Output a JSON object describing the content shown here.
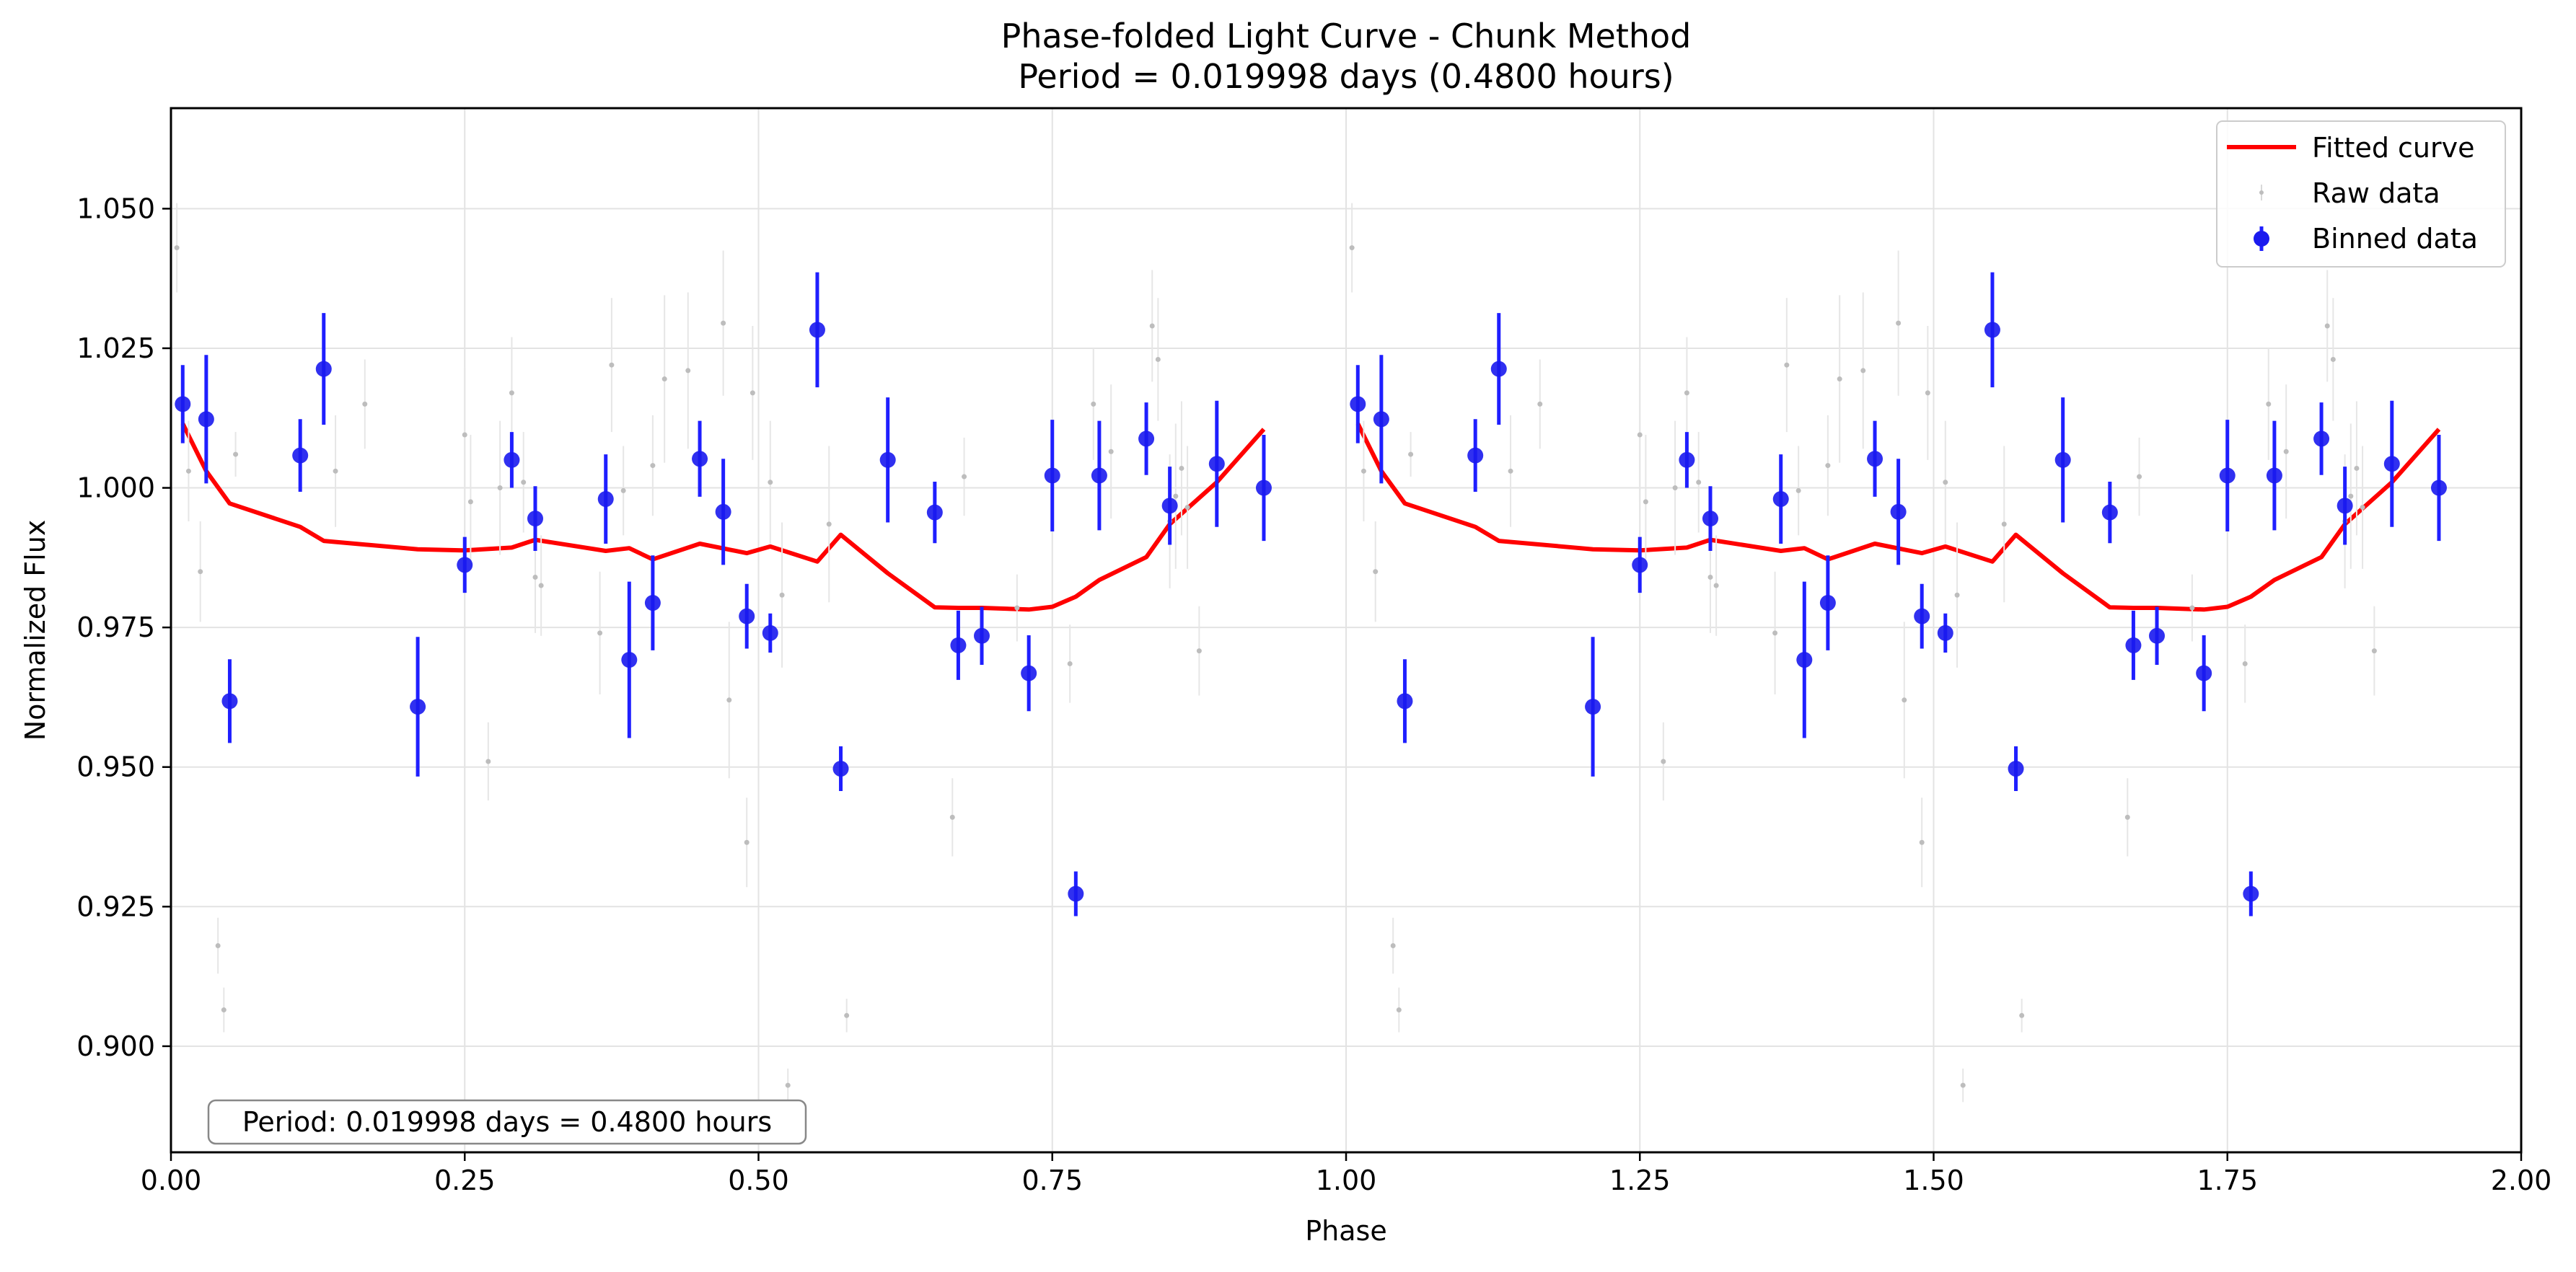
{
  "chart_data": {
    "type": "scatter",
    "title": "Phase-folded Light Curve - Chunk Method",
    "subtitle": "Period = 0.019998 days (0.4800 hours)",
    "xlabel": "Phase",
    "ylabel": "Normalized Flux",
    "xlim": [
      0.0,
      2.0
    ],
    "ylim": [
      0.881,
      1.068
    ],
    "x_ticks": [
      0.0,
      0.25,
      0.5,
      0.75,
      1.0,
      1.25,
      1.5,
      1.75,
      2.0
    ],
    "x_tick_labels": [
      "0.00",
      "0.25",
      "0.50",
      "0.75",
      "1.00",
      "1.25",
      "1.50",
      "1.75",
      "2.00"
    ],
    "y_ticks": [
      0.9,
      0.925,
      0.95,
      0.975,
      1.0,
      1.025,
      1.05
    ],
    "y_tick_labels": [
      "0.900",
      "0.925",
      "0.950",
      "0.975",
      "1.000",
      "1.025",
      "1.050"
    ],
    "grid": true,
    "legend_position": "top-right",
    "legend": [
      {
        "label": "Fitted curve",
        "kind": "line",
        "color": "#ff0000"
      },
      {
        "label": "Raw data",
        "kind": "dot",
        "color": "#bdbdbd"
      },
      {
        "label": "Binned data",
        "kind": "errorbar",
        "color": "#0000ee"
      }
    ],
    "annotation": "Period: 0.019998 days = 0.4800 hours",
    "series": [
      {
        "name": "Fitted curve",
        "kind": "line",
        "color": "#ff0000",
        "x": [
          0.01,
          0.03,
          0.05,
          0.11,
          0.13,
          0.21,
          0.25,
          0.29,
          0.31,
          0.37,
          0.39,
          0.41,
          0.45,
          0.49,
          0.51,
          0.55,
          0.57,
          0.61,
          0.65,
          0.67,
          0.69,
          0.73,
          0.75,
          0.77,
          0.79,
          0.83,
          0.85,
          0.89,
          0.93
        ],
        "y": [
          1.0115,
          1.003,
          0.9972,
          0.993,
          0.9905,
          0.989,
          0.9888,
          0.9893,
          0.9907,
          0.9887,
          0.9892,
          0.9872,
          0.99,
          0.9883,
          0.9895,
          0.9868,
          0.9916,
          0.9847,
          0.9786,
          0.9785,
          0.9785,
          0.9782,
          0.9787,
          0.9805,
          0.9835,
          0.9876,
          0.9935,
          1.001,
          1.0105
        ]
      },
      {
        "name": "Binned data",
        "kind": "errorbar",
        "color": "#0000ee",
        "x": [
          0.01,
          0.03,
          0.05,
          0.11,
          0.13,
          0.21,
          0.25,
          0.29,
          0.31,
          0.37,
          0.39,
          0.41,
          0.45,
          0.47,
          0.49,
          0.51,
          0.55,
          0.57,
          0.61,
          0.65,
          0.67,
          0.69,
          0.73,
          0.75,
          0.77,
          0.79,
          0.83,
          0.85,
          0.89,
          0.93
        ],
        "y": [
          1.015,
          1.0123,
          0.9618,
          1.0058,
          1.0213,
          0.9608,
          0.9862,
          1.005,
          0.9945,
          0.998,
          0.9692,
          0.9794,
          1.0052,
          0.9957,
          0.977,
          0.974,
          1.0283,
          0.9497,
          1.005,
          0.9956,
          0.9718,
          0.9735,
          0.9668,
          1.0022,
          0.9273,
          1.0022,
          1.0088,
          0.9968,
          1.0043,
          1.0
        ],
        "err": [
          0.007,
          0.0115,
          0.0075,
          0.0065,
          0.01,
          0.0125,
          0.005,
          0.005,
          0.0058,
          0.008,
          0.014,
          0.0085,
          0.0068,
          0.0095,
          0.0058,
          0.0035,
          0.0103,
          0.004,
          0.0112,
          0.0055,
          0.0062,
          0.0052,
          0.0068,
          0.01,
          0.004,
          0.0098,
          0.0065,
          0.007,
          0.0113,
          0.0095
        ]
      },
      {
        "name": "Raw data",
        "kind": "dot",
        "color": "#bdbdbd",
        "x": [
          0.005,
          0.015,
          0.025,
          0.04,
          0.045,
          0.055,
          0.14,
          0.165,
          0.25,
          0.255,
          0.27,
          0.28,
          0.29,
          0.3,
          0.31,
          0.315,
          0.365,
          0.375,
          0.385,
          0.41,
          0.42,
          0.44,
          0.47,
          0.475,
          0.49,
          0.495,
          0.51,
          0.52,
          0.525,
          0.56,
          0.575,
          0.665,
          0.675,
          0.72,
          0.765,
          0.785,
          0.8,
          0.835,
          0.84,
          0.85,
          0.855,
          0.86,
          0.865,
          0.875
        ],
        "y": [
          1.043,
          1.003,
          0.985,
          0.918,
          0.9065,
          1.006,
          1.003,
          1.015,
          1.0095,
          0.9975,
          0.951,
          1.0,
          1.017,
          1.001,
          0.984,
          0.9825,
          0.974,
          1.022,
          0.9995,
          1.004,
          1.0195,
          1.021,
          1.0295,
          0.962,
          0.9365,
          1.017,
          1.001,
          0.9808,
          0.893,
          0.9935,
          0.9055,
          0.941,
          1.002,
          0.9785,
          0.9685,
          1.015,
          1.0065,
          1.029,
          1.023,
          0.994,
          0.9985,
          1.0035,
          0.9965,
          0.9708
        ],
        "err": [
          0.008,
          0.009,
          0.009,
          0.005,
          0.004,
          0.004,
          0.01,
          0.008,
          0.012,
          0.012,
          0.007,
          0.012,
          0.01,
          0.009,
          0.01,
          0.009,
          0.011,
          0.012,
          0.008,
          0.009,
          0.015,
          0.014,
          0.013,
          0.014,
          0.008,
          0.012,
          0.011,
          0.013,
          0.003,
          0.014,
          0.003,
          0.007,
          0.007,
          0.006,
          0.007,
          0.01,
          0.012,
          0.01,
          0.011,
          0.012,
          0.013,
          0.012,
          0.011,
          0.008
        ]
      }
    ],
    "notes": "Each series is plotted twice: at phase x and at phase x + 1.0."
  }
}
